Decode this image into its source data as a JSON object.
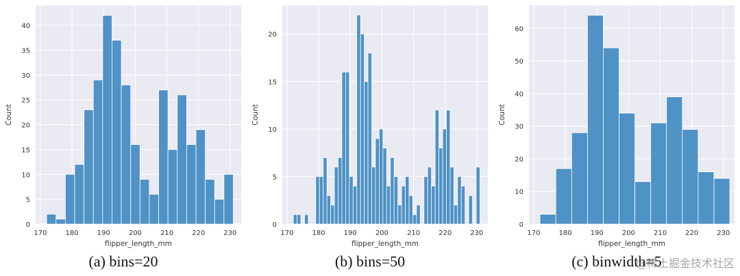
{
  "chart_data": [
    {
      "type": "bar",
      "caption": "(a) bins=20",
      "xlabel": "flipper_length_mm",
      "ylabel": "Count",
      "xlim": [
        168.5,
        233.5
      ],
      "ylim": [
        0,
        44
      ],
      "xticks": [
        170,
        180,
        190,
        200,
        210,
        220,
        230
      ],
      "yticks": [
        0,
        5,
        10,
        15,
        20,
        25,
        30,
        35,
        40
      ],
      "grid": true,
      "bin_start": 172,
      "bin_width": 2.95,
      "values": [
        2,
        1,
        10,
        12,
        23,
        29,
        42,
        37,
        28,
        16,
        9,
        6,
        27,
        15,
        26,
        16,
        19,
        9,
        5,
        10
      ]
    },
    {
      "type": "bar",
      "caption": "(b) bins=50",
      "xlabel": "flipper_length_mm",
      "ylabel": "Count",
      "xlim": [
        168.5,
        233.5
      ],
      "ylim": [
        0,
        23
      ],
      "xticks": [
        170,
        180,
        190,
        200,
        210,
        220,
        230
      ],
      "yticks": [
        0,
        5,
        10,
        15,
        20
      ],
      "grid": true,
      "bin_start": 172,
      "bin_width": 1.18,
      "values": [
        1,
        1,
        0,
        1,
        0,
        0,
        5,
        5,
        7,
        3,
        2,
        6,
        7,
        16,
        16,
        5,
        4,
        22,
        20,
        15,
        18,
        6,
        9,
        10,
        8,
        4,
        7,
        5,
        2,
        4,
        5,
        3,
        1,
        2,
        0,
        5,
        6,
        4,
        12,
        8,
        10,
        12,
        6,
        2,
        5,
        4,
        0,
        3,
        0,
        6
      ]
    },
    {
      "type": "bar",
      "caption": "(c) binwidth=5",
      "xlabel": "flipper_length_mm",
      "ylabel": "Count",
      "xlim": [
        168.5,
        233.5
      ],
      "ylim": [
        0,
        67
      ],
      "xticks": [
        170,
        180,
        190,
        200,
        210,
        220,
        230
      ],
      "yticks": [
        0,
        10,
        20,
        30,
        40,
        50,
        60
      ],
      "grid": true,
      "bin_start": 172,
      "bin_width": 5,
      "values": [
        3,
        17,
        28,
        64,
        54,
        34,
        13,
        31,
        39,
        29,
        16,
        14
      ]
    }
  ],
  "watermark": "@稀土掘金技术社区",
  "colors": {
    "bar": "#4f92c5",
    "bar_edge": "#ffffff",
    "plot_bg": "#eaeaf2",
    "grid": "#ffffff",
    "text": "#333333"
  }
}
